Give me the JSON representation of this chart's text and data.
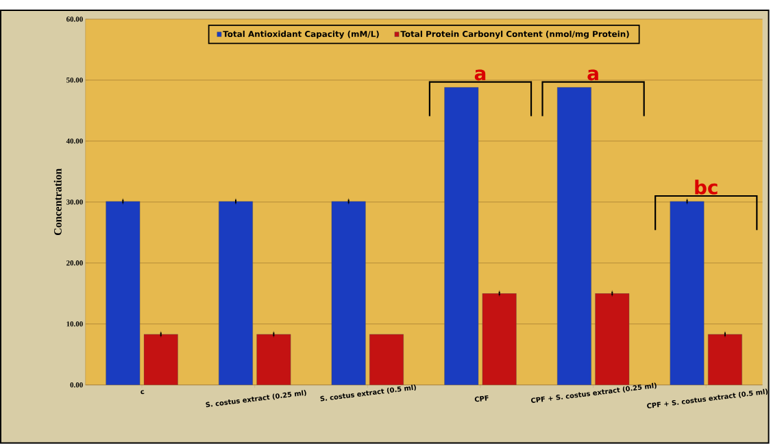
{
  "chart_data": {
    "type": "bar",
    "ylabel": "Concentration",
    "categories": [
      "c",
      "S. costus extract (0.25 ml)",
      "S. costus extract (0.5 ml)",
      "CPF",
      "CPF + S. costus extract (0.25 ml)",
      "CPF + S. costus extract (0.5 ml)"
    ],
    "series": [
      {
        "name": "Total Antioxidant Capacity (mM/L)",
        "color": "#1a3cc0",
        "values": [
          30.1,
          30.1,
          30.1,
          48.8,
          48.8,
          30.1
        ],
        "errors": [
          0.3,
          0.3,
          0.3,
          null,
          null,
          0.3
        ]
      },
      {
        "name": "Total Protein Carbonyl Content (nmol/mg Protein)",
        "color": "#c41212",
        "values": [
          8.3,
          8.3,
          8.3,
          15.0,
          15.0,
          8.3
        ],
        "errors": [
          0.3,
          0.3,
          null,
          0.3,
          0.3,
          0.3
        ]
      }
    ],
    "ylim": [
      0,
      60
    ],
    "yticks": [
      {
        "value": 0,
        "label": "0.00"
      },
      {
        "value": 10,
        "label": "10.00"
      },
      {
        "value": 20,
        "label": "20.00"
      },
      {
        "value": 30,
        "label": "30.00"
      },
      {
        "value": 40,
        "label": "40.00"
      },
      {
        "value": 50,
        "label": "50.00"
      },
      {
        "value": 60,
        "label": "60.00"
      }
    ],
    "grid": "y",
    "legend": "top",
    "annotations": [
      "a",
      "a",
      "bc"
    ]
  }
}
